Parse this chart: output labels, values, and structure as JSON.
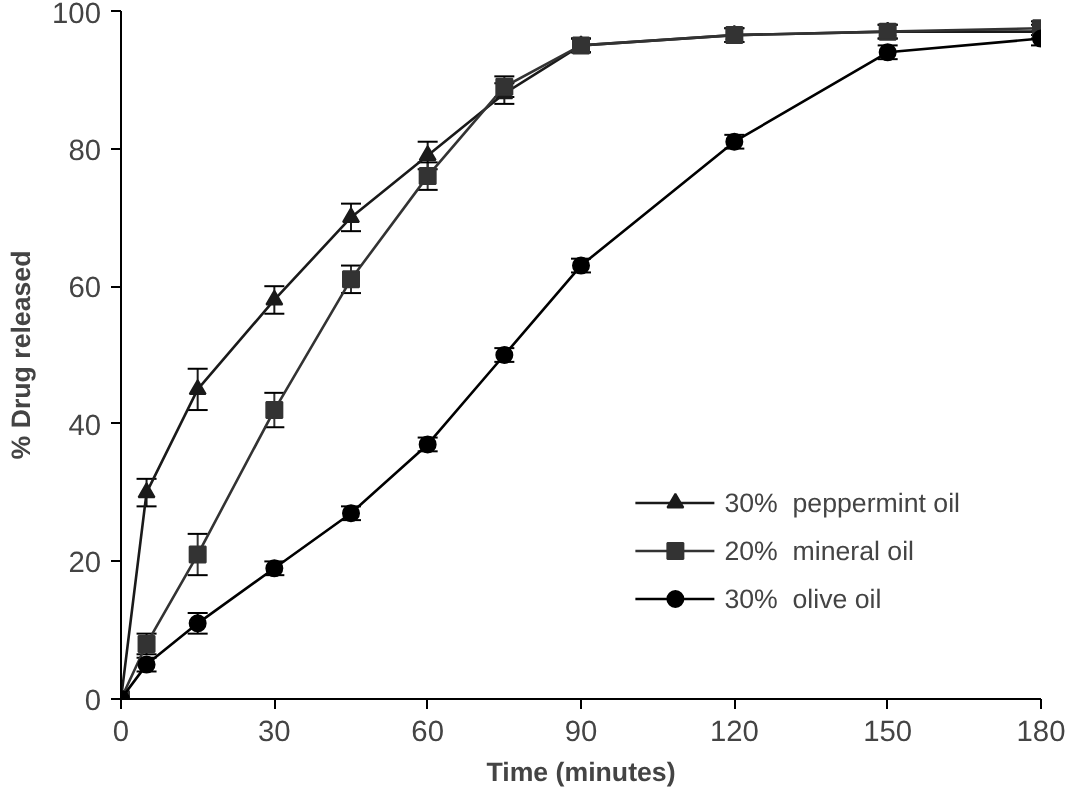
{
  "chart_data": {
    "type": "line",
    "xlabel": "Time (minutes)",
    "ylabel": "% Drug released",
    "x": [
      0,
      5,
      15,
      30,
      45,
      60,
      75,
      90,
      120,
      150,
      180
    ],
    "xlim": [
      0,
      180
    ],
    "xticks": [
      0,
      30,
      60,
      90,
      120,
      150,
      180
    ],
    "ylim": [
      0,
      100
    ],
    "yticks": [
      0,
      20,
      40,
      60,
      80,
      100
    ],
    "grid": false,
    "legend": "bottom right",
    "line_style": "solid",
    "series": [
      {
        "name": "30%  peppermint oil",
        "color": "#1a1a1a",
        "marker": "triangle",
        "values": [
          0,
          30,
          45,
          58,
          70,
          79,
          88,
          95,
          96.5,
          97,
          97
        ],
        "errors": [
          null,
          2,
          3,
          2,
          2,
          2,
          1.5,
          1,
          1,
          1,
          1
        ]
      },
      {
        "name": "20%  mineral oil",
        "color": "#333333",
        "marker": "square",
        "values": [
          0,
          8,
          21,
          42,
          61,
          76,
          89,
          95,
          96.5,
          97,
          97.5
        ],
        "errors": [
          null,
          1.5,
          3,
          2.5,
          2,
          2,
          1.5,
          1,
          1,
          1,
          1
        ]
      },
      {
        "name": "30%  olive oil",
        "color": "#000000",
        "marker": "circle",
        "values": [
          0,
          5,
          11,
          19,
          27,
          37,
          50,
          63,
          81,
          94,
          96
        ],
        "errors": [
          null,
          1,
          1.5,
          1,
          1,
          1,
          1,
          1,
          1,
          1,
          1
        ]
      }
    ]
  }
}
